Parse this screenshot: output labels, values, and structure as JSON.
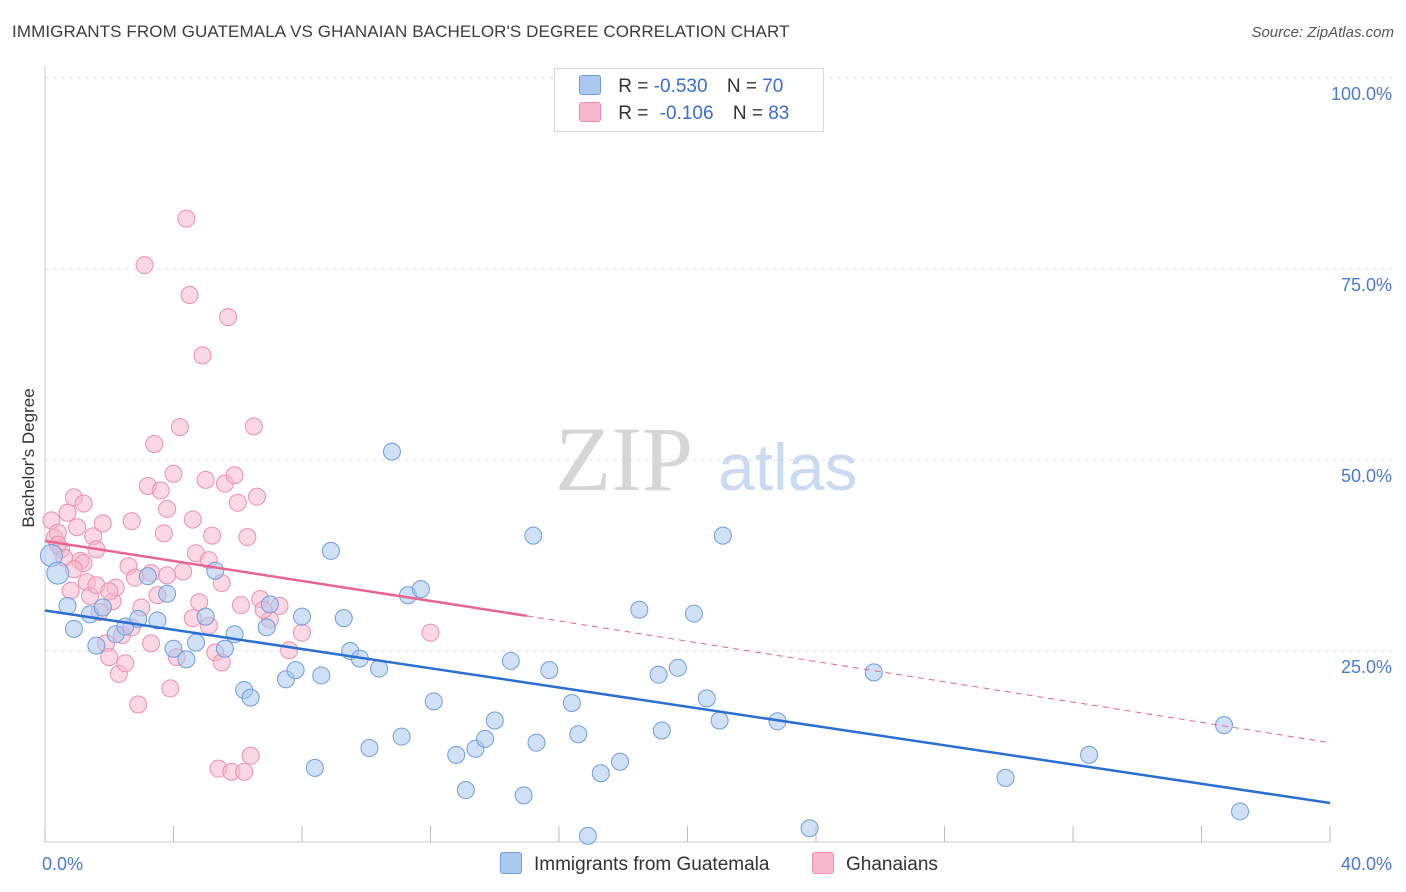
{
  "header": {
    "title": "IMMIGRANTS FROM GUATEMALA VS GHANAIAN BACHELOR'S DEGREE CORRELATION CHART",
    "source": "Source: ZipAtlas.com"
  },
  "watermark": {
    "zip": "ZIP",
    "atlas": "atlas"
  },
  "legend": {
    "rows": [
      {
        "r_label": "R =",
        "r_value": "-0.530",
        "n_label": "N =",
        "n_value": "70"
      },
      {
        "r_label": "R =",
        "r_value": "-0.106",
        "n_label": "N =",
        "n_value": "83"
      }
    ]
  },
  "bottom_legend": {
    "series1": "Immigrants from Guatemala",
    "series2": "Ghanaians"
  },
  "colors": {
    "blue_fill": "#aac8f0",
    "blue_stroke": "#6f9de0",
    "blue_line": "#2a6fd4",
    "pink_fill": "#f7b8cc",
    "pink_stroke": "#ee8fae",
    "pink_line": "#e8658f",
    "tick_text": "#4a7bd0",
    "grid": "#dddddd"
  },
  "chart_data": {
    "type": "scatter",
    "title": "IMMIGRANTS FROM GUATEMALA VS GHANAIAN BACHELOR'S DEGREE CORRELATION CHART",
    "xlabel": "",
    "ylabel": "Bachelor's Degree",
    "xlim": [
      0,
      40
    ],
    "ylim": [
      0,
      100
    ],
    "x_tick_labels": [
      "0.0%",
      "40.0%"
    ],
    "y_ticks": [
      {
        "value": 25,
        "label": "25.0%"
      },
      {
        "value": 50,
        "label": "50.0%"
      },
      {
        "value": 75,
        "label": "75.0%"
      },
      {
        "value": 100,
        "label": "100.0%"
      }
    ],
    "series": [
      {
        "name": "Immigrants from Guatemala",
        "color": "blue",
        "R": -0.53,
        "N": 70,
        "trend": {
          "x0": 0,
          "y0": 30.3,
          "x1": 40,
          "y1": 5.1,
          "dashed_to": null
        },
        "points": [
          [
            0.2,
            37.5
          ],
          [
            0.4,
            35.2
          ],
          [
            0.7,
            30.9
          ],
          [
            0.9,
            27.9
          ],
          [
            1.4,
            29.8
          ],
          [
            1.6,
            25.7
          ],
          [
            1.8,
            30.7
          ],
          [
            2.2,
            27.2
          ],
          [
            2.5,
            28.2
          ],
          [
            2.9,
            29.2
          ],
          [
            3.2,
            34.8
          ],
          [
            3.5,
            29.0
          ],
          [
            3.8,
            32.5
          ],
          [
            4.0,
            25.3
          ],
          [
            4.4,
            23.9
          ],
          [
            4.7,
            26.1
          ],
          [
            5.0,
            29.5
          ],
          [
            5.3,
            35.5
          ],
          [
            5.6,
            25.3
          ],
          [
            5.9,
            27.2
          ],
          [
            6.2,
            19.9
          ],
          [
            6.4,
            18.9
          ],
          [
            6.9,
            28.1
          ],
          [
            7.0,
            31.1
          ],
          [
            7.5,
            21.3
          ],
          [
            7.8,
            22.5
          ],
          [
            8.0,
            29.5
          ],
          [
            8.4,
            9.7
          ],
          [
            8.6,
            21.8
          ],
          [
            8.9,
            38.1
          ],
          [
            9.3,
            29.3
          ],
          [
            9.5,
            25.0
          ],
          [
            9.8,
            24.0
          ],
          [
            10.1,
            12.3
          ],
          [
            10.4,
            22.7
          ],
          [
            10.8,
            51.1
          ],
          [
            11.1,
            13.8
          ],
          [
            11.3,
            32.3
          ],
          [
            11.7,
            33.1
          ],
          [
            12.1,
            18.4
          ],
          [
            12.8,
            11.4
          ],
          [
            13.1,
            6.8
          ],
          [
            13.4,
            12.2
          ],
          [
            13.7,
            13.5
          ],
          [
            14.0,
            15.9
          ],
          [
            14.5,
            23.7
          ],
          [
            14.9,
            6.1
          ],
          [
            15.2,
            40.1
          ],
          [
            15.3,
            13.0
          ],
          [
            15.7,
            22.5
          ],
          [
            16.4,
            18.2
          ],
          [
            16.6,
            14.1
          ],
          [
            16.9,
            0.8
          ],
          [
            17.3,
            9.0
          ],
          [
            17.9,
            10.5
          ],
          [
            18.5,
            30.4
          ],
          [
            19.1,
            21.9
          ],
          [
            19.2,
            14.6
          ],
          [
            19.7,
            22.8
          ],
          [
            20.2,
            29.9
          ],
          [
            20.6,
            18.8
          ],
          [
            21.0,
            15.9
          ],
          [
            21.1,
            40.1
          ],
          [
            22.8,
            15.8
          ],
          [
            23.8,
            1.8
          ],
          [
            25.8,
            22.2
          ],
          [
            29.9,
            8.4
          ],
          [
            32.5,
            11.4
          ],
          [
            36.7,
            15.3
          ],
          [
            37.2,
            4.0
          ]
        ]
      },
      {
        "name": "Ghanaians",
        "color": "pink",
        "R": -0.106,
        "N": 83,
        "trend": {
          "x0": 0,
          "y0": 39.4,
          "x1": 15.0,
          "y1": 29.6,
          "dashed_x1": 40,
          "dashed_y1": 13.0
        },
        "points": [
          [
            0.2,
            42.1
          ],
          [
            0.3,
            39.8
          ],
          [
            0.4,
            40.5
          ],
          [
            0.5,
            38.3
          ],
          [
            0.6,
            37.2
          ],
          [
            0.7,
            43.1
          ],
          [
            0.8,
            32.9
          ],
          [
            0.9,
            45.1
          ],
          [
            1.0,
            41.2
          ],
          [
            1.1,
            36.8
          ],
          [
            1.2,
            44.3
          ],
          [
            1.3,
            34.0
          ],
          [
            1.4,
            32.2
          ],
          [
            1.5,
            40.0
          ],
          [
            1.6,
            33.6
          ],
          [
            1.7,
            30.1
          ],
          [
            1.8,
            41.7
          ],
          [
            1.9,
            26.0
          ],
          [
            2.0,
            24.2
          ],
          [
            2.1,
            31.5
          ],
          [
            2.2,
            33.3
          ],
          [
            2.3,
            22.0
          ],
          [
            2.4,
            27.1
          ],
          [
            2.5,
            23.4
          ],
          [
            2.6,
            36.1
          ],
          [
            2.7,
            42.0
          ],
          [
            2.8,
            34.6
          ],
          [
            2.9,
            18.0
          ],
          [
            3.0,
            30.7
          ],
          [
            3.1,
            75.5
          ],
          [
            3.2,
            46.6
          ],
          [
            3.3,
            35.2
          ],
          [
            3.4,
            52.1
          ],
          [
            3.5,
            32.3
          ],
          [
            3.6,
            46.0
          ],
          [
            3.7,
            40.4
          ],
          [
            3.8,
            43.6
          ],
          [
            3.9,
            20.1
          ],
          [
            4.0,
            48.2
          ],
          [
            4.1,
            24.2
          ],
          [
            4.2,
            54.3
          ],
          [
            4.3,
            35.4
          ],
          [
            4.4,
            81.6
          ],
          [
            4.5,
            71.6
          ],
          [
            4.6,
            29.3
          ],
          [
            4.7,
            37.8
          ],
          [
            4.8,
            31.4
          ],
          [
            4.9,
            63.7
          ],
          [
            5.0,
            47.4
          ],
          [
            5.1,
            28.3
          ],
          [
            5.2,
            40.1
          ],
          [
            5.3,
            24.8
          ],
          [
            5.4,
            9.6
          ],
          [
            5.5,
            33.9
          ],
          [
            5.6,
            46.9
          ],
          [
            5.7,
            68.7
          ],
          [
            5.8,
            9.2
          ],
          [
            5.9,
            48.0
          ],
          [
            6.0,
            44.4
          ],
          [
            6.1,
            31.0
          ],
          [
            6.2,
            9.2
          ],
          [
            6.3,
            39.9
          ],
          [
            6.4,
            11.3
          ],
          [
            6.5,
            54.4
          ],
          [
            6.6,
            45.2
          ],
          [
            6.7,
            31.8
          ],
          [
            7.0,
            29.1
          ],
          [
            7.3,
            30.9
          ],
          [
            7.6,
            25.1
          ],
          [
            8.0,
            27.4
          ],
          [
            0.4,
            38.9
          ],
          [
            1.2,
            36.5
          ],
          [
            2.0,
            32.8
          ],
          [
            2.7,
            28.1
          ],
          [
            3.3,
            26.0
          ],
          [
            3.8,
            34.9
          ],
          [
            4.6,
            42.2
          ],
          [
            5.1,
            36.9
          ],
          [
            5.5,
            23.5
          ],
          [
            6.8,
            30.4
          ],
          [
            0.9,
            35.7
          ],
          [
            1.6,
            38.3
          ],
          [
            12.0,
            27.4
          ]
        ]
      }
    ]
  }
}
